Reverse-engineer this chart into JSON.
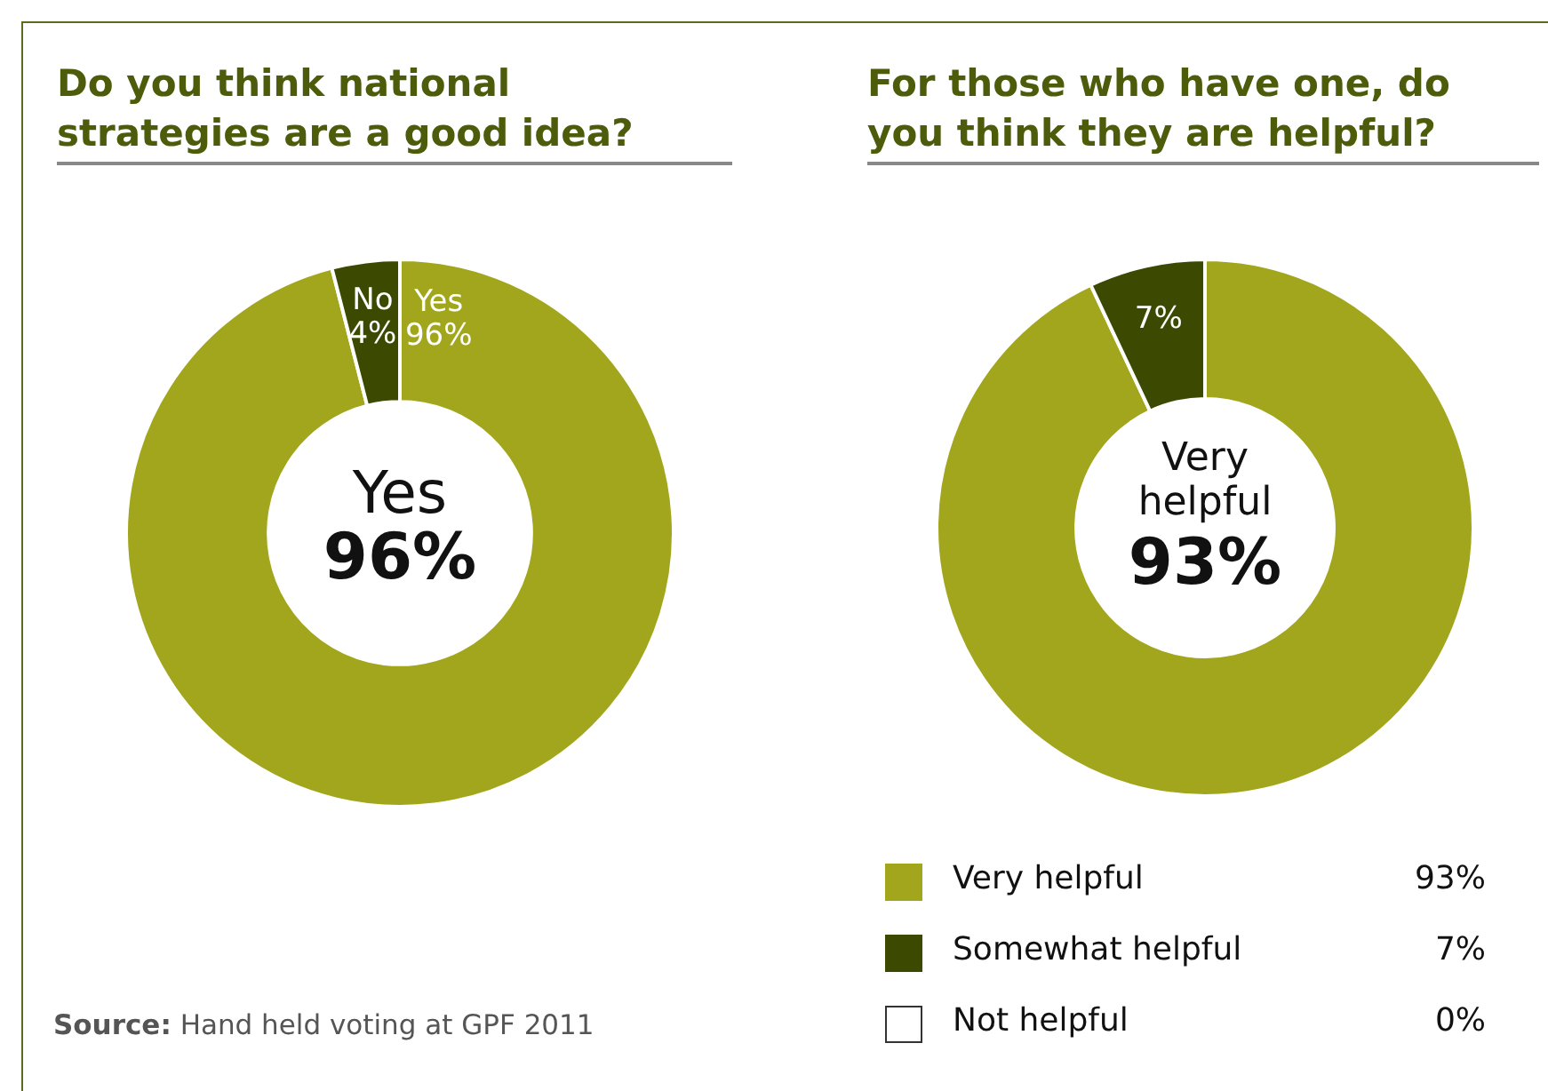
{
  "chart_data": [
    {
      "type": "donut",
      "title": "Do you think national strategies are a good idea?",
      "categories": [
        "Yes",
        "No"
      ],
      "values": [
        96,
        4
      ],
      "colors": [
        "#a2a61c",
        "#3b4a00"
      ],
      "value_labels": [
        "96%",
        "4%"
      ],
      "annotations": [
        "Yes\n96%",
        "Source: Hand held voting at GPF 2011"
      ]
    },
    {
      "type": "donut",
      "title": "For those who have one, do you think they are helpful?",
      "categories": [
        "Very helpful",
        "Somewhat helpful",
        "Not helpful"
      ],
      "values": [
        93,
        7,
        0
      ],
      "colors": [
        "#a2a61c",
        "#3b4a00",
        "#ffffff"
      ],
      "value_labels": [
        "93%",
        "7%",
        "0%"
      ],
      "legend": "bottom",
      "annotations": [
        "Very\nhelpful\n93%"
      ]
    }
  ]
}
